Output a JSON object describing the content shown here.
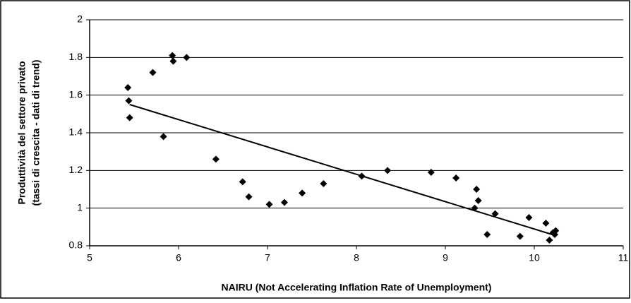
{
  "chart_data": {
    "type": "scatter",
    "xlabel": "NAIRU (Not Accelerating Inflation Rate of Unemployment)",
    "ylabel": [
      "Produttività del settore privato",
      "(tassi di crescita - dati di trend)"
    ],
    "x": [
      5.43,
      5.44,
      5.45,
      5.71,
      5.93,
      5.94,
      6.09,
      5.83,
      6.42,
      6.72,
      6.79,
      7.02,
      7.19,
      7.39,
      7.63,
      8.06,
      8.35,
      8.84,
      9.12,
      9.35,
      9.37,
      9.33,
      9.56,
      9.47,
      9.84,
      9.94,
      10.13,
      10.23,
      10.17,
      10.21,
      10.24
    ],
    "values": [
      1.64,
      1.57,
      1.48,
      1.72,
      1.81,
      1.78,
      1.8,
      1.38,
      1.26,
      1.14,
      1.06,
      1.02,
      1.03,
      1.08,
      1.13,
      1.17,
      1.2,
      1.19,
      1.16,
      1.1,
      1.04,
      1.0,
      0.97,
      0.86,
      0.85,
      0.95,
      0.92,
      0.86,
      0.83,
      0.87,
      0.88
    ],
    "color": "#000000",
    "trendline": {
      "x": [
        5.45,
        10.2
      ],
      "values": [
        1.55,
        0.86
      ]
    },
    "xlim": [
      5,
      11
    ],
    "xticks": [
      5,
      6,
      7,
      8,
      9,
      10,
      11
    ],
    "ylim": [
      0.8,
      2
    ],
    "yticks": [
      0.8,
      1,
      1.2,
      1.4,
      1.6,
      1.8,
      2
    ],
    "grid": true
  }
}
